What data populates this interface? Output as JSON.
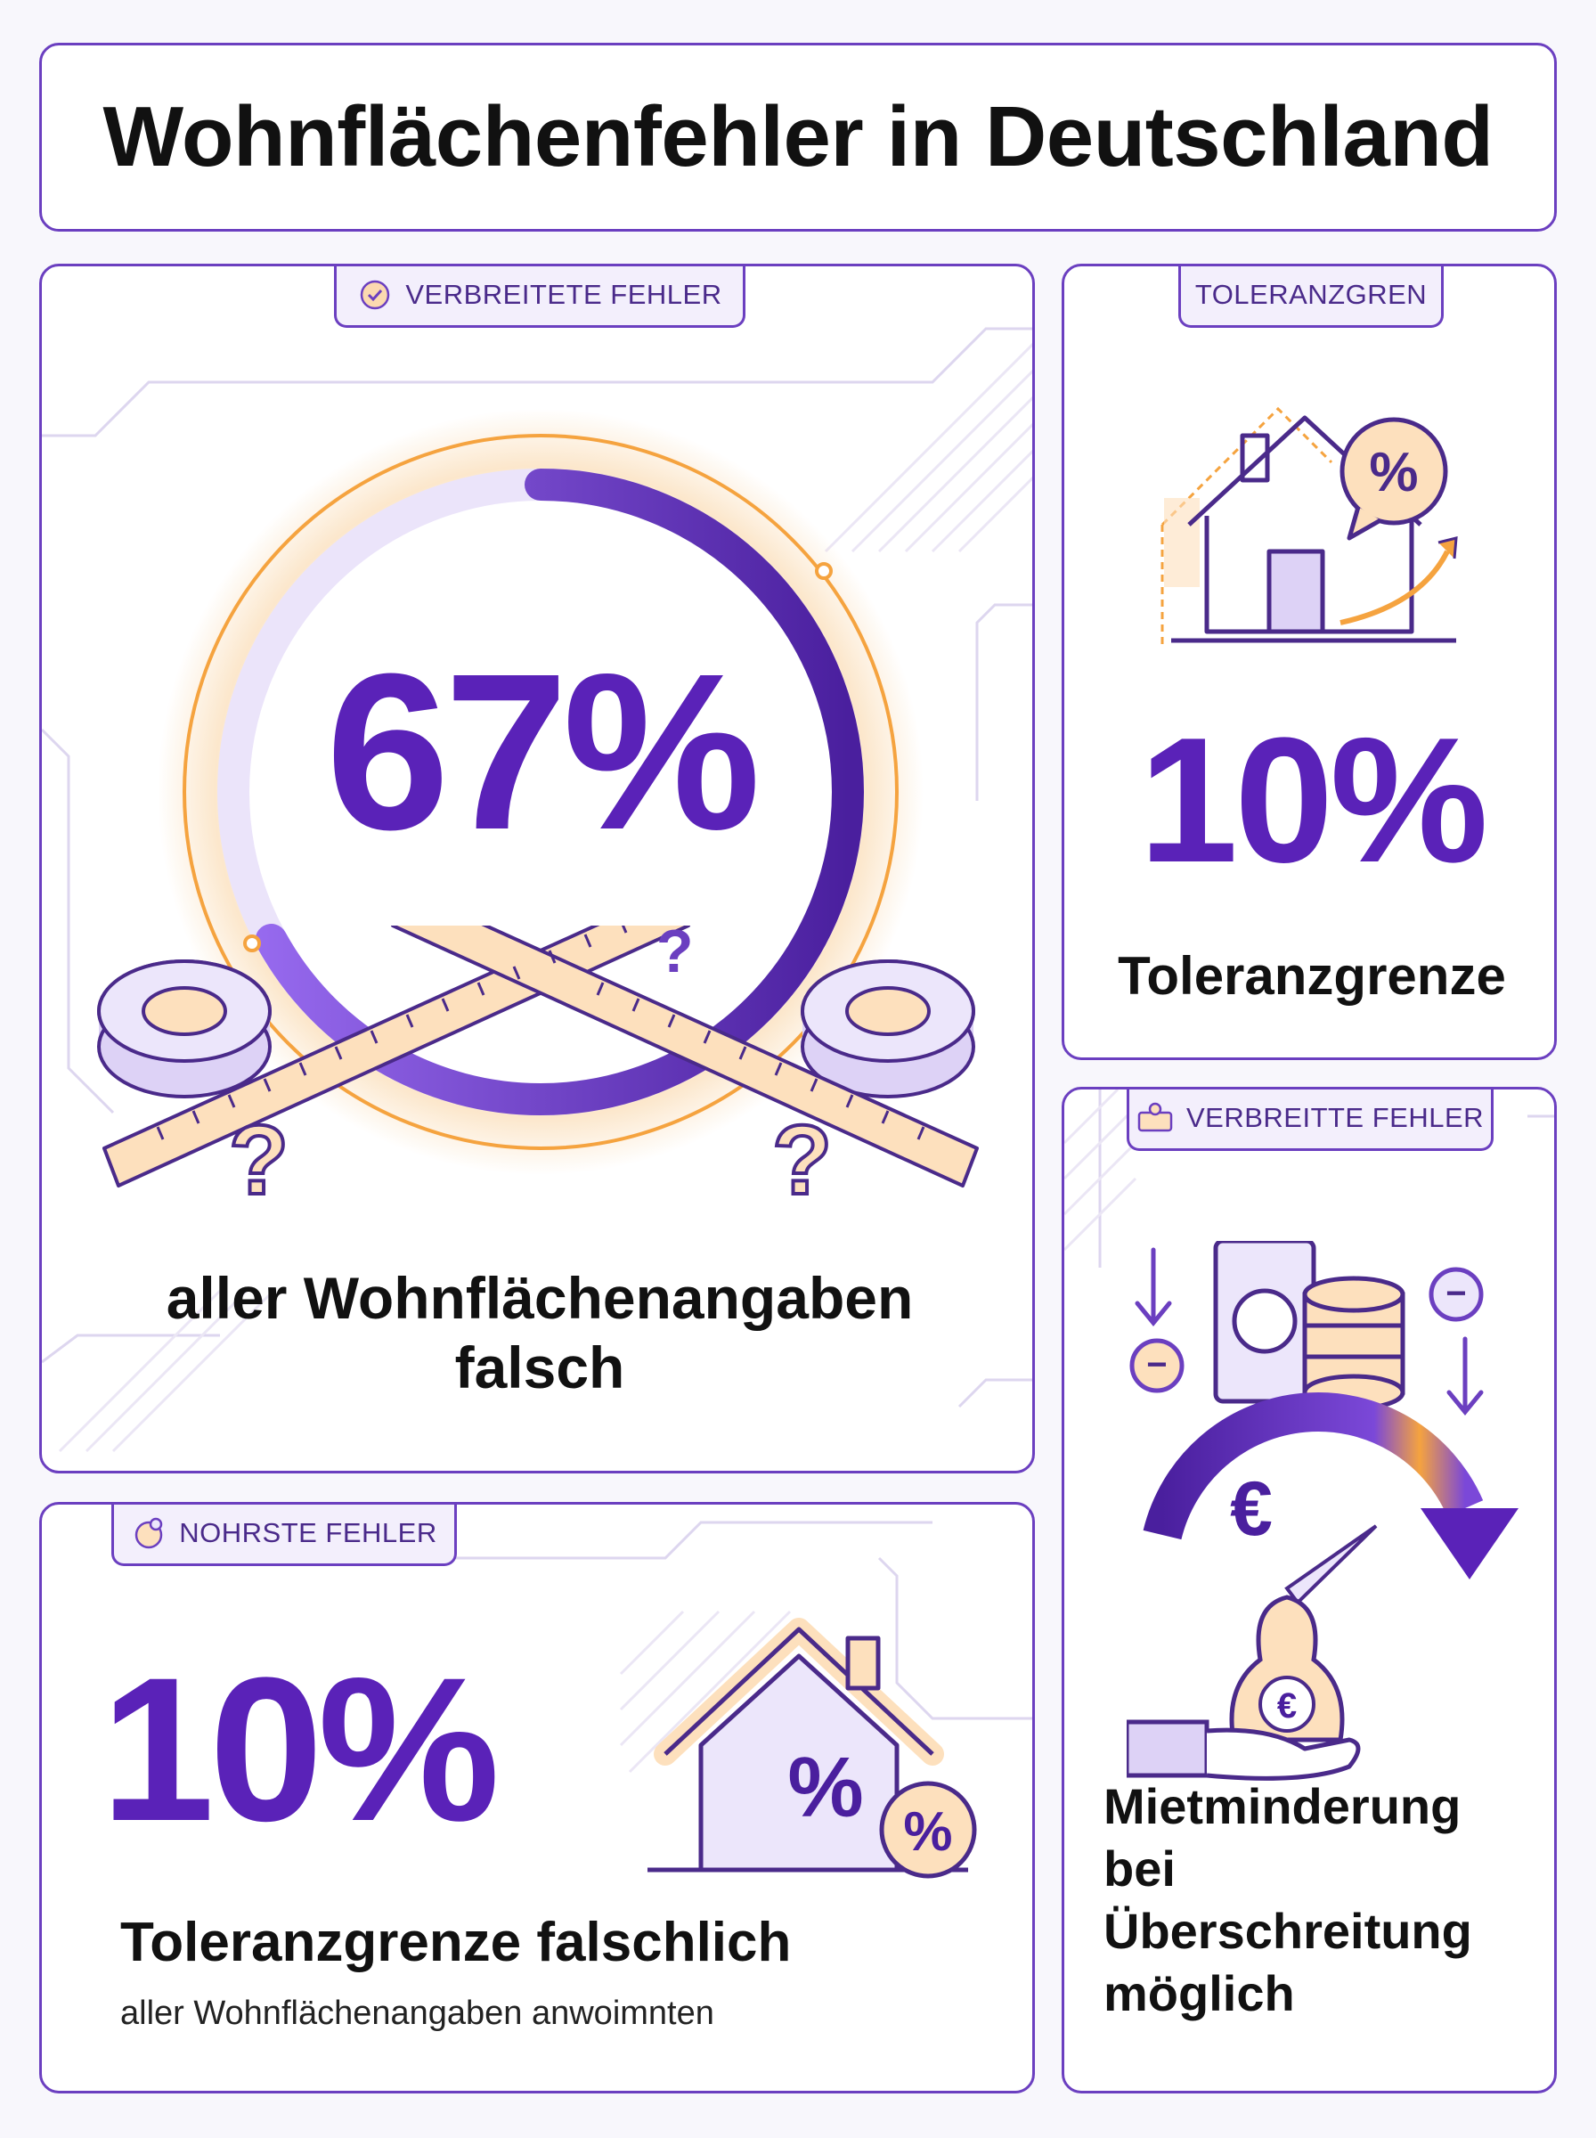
{
  "title": "Wohnflächenfehler in Deutschland",
  "colors": {
    "accent": "#6b3fc0",
    "accent_dark": "#4a1f9e",
    "orange": "#f5a33f",
    "peach": "#fde0bd",
    "lavender": "#ece6fb"
  },
  "card_main": {
    "tag": "VERBREITETE FEHLER",
    "tag_icon": "badge-check-icon",
    "stat": "67%",
    "stat_fraction": 0.67,
    "caption_line1": "aller Wohnflächenangaben",
    "caption_line2": "falsch",
    "illustration": "crossed-measuring-tapes-icon",
    "question_marks": [
      "?",
      "?",
      "?"
    ]
  },
  "card_tolerance": {
    "tag": "TOLERANZGREN",
    "icon": "house-percent-icon",
    "icon_badge": "%",
    "stat": "10%",
    "caption": "Toleranzgrenze"
  },
  "card_bottom_left": {
    "tag": "NOHRSTE FEHLER",
    "tag_icon": "gear-euro-icon",
    "stat": "10%",
    "icon": "house-percent-icon",
    "icon_percent_1": "%",
    "icon_percent_2": "%",
    "caption": "Toleranzgrenze falschlich",
    "subcaption": "aller Wohnflächenangaben anwoimnten"
  },
  "card_rent": {
    "tag": "VERBREITTE FEHLER",
    "tag_icon": "money-hand-icon",
    "icon": "rent-reduction-icon",
    "euro_symbol": "€",
    "bag_symbol": "€",
    "minus_symbol": "−",
    "caption_line1": "Mietminderung",
    "caption_line2": "bei",
    "caption_line3": "Überschreitung",
    "caption_line4": "möglich"
  }
}
